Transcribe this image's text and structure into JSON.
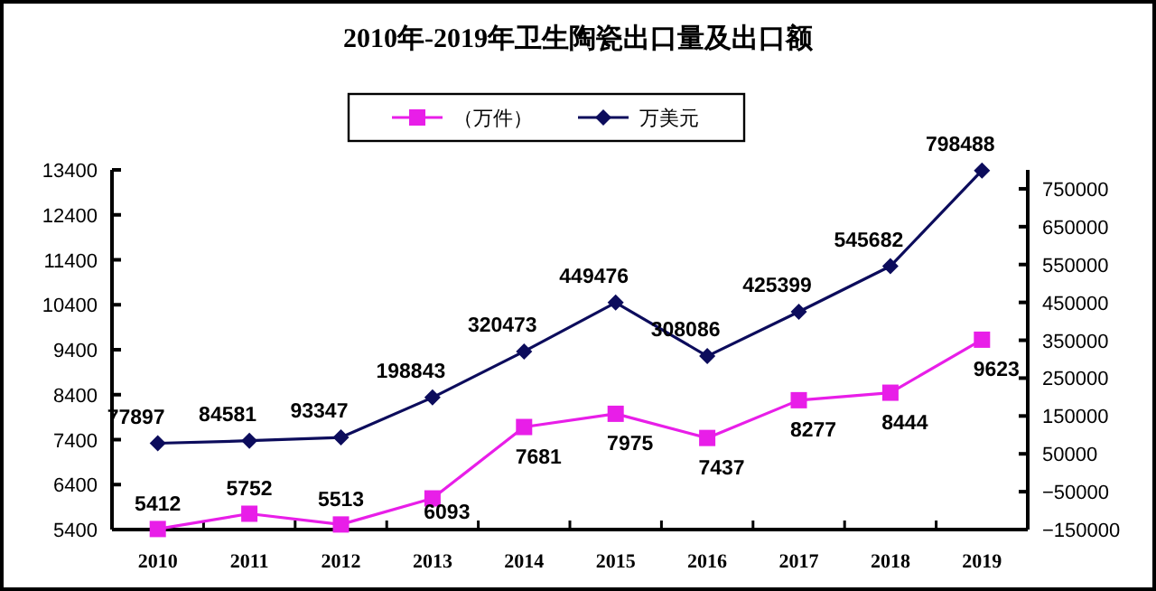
{
  "chart_data": {
    "type": "line",
    "title": "2010年-2019年卫生陶瓷出口量及出口额",
    "categories": [
      "2010",
      "2011",
      "2012",
      "2013",
      "2014",
      "2015",
      "2016",
      "2017",
      "2018",
      "2019"
    ],
    "series": [
      {
        "name": "（万件）",
        "color": "#e81ee8",
        "marker": "square",
        "values": [
          5412,
          5752,
          5513,
          6093,
          7681,
          7975,
          7437,
          8277,
          8444,
          9623
        ]
      },
      {
        "name": "万美元",
        "color": "#0c0c5c",
        "marker": "diamond",
        "axis": "y2",
        "values": [
          77897,
          84581,
          93347,
          198843,
          320473,
          449476,
          308086,
          425399,
          545682,
          798488
        ]
      }
    ],
    "ylim": [
      5400,
      13400
    ],
    "yticks": [
      5400,
      6400,
      7400,
      8400,
      9400,
      10400,
      11400,
      12400,
      13400
    ],
    "y2lim": [
      -150000,
      800000
    ],
    "y2ticks": [
      -150000,
      -50000,
      50000,
      150000,
      250000,
      350000,
      450000,
      550000,
      650000,
      750000
    ],
    "data_labels": true,
    "legend": "top",
    "grid": false
  }
}
